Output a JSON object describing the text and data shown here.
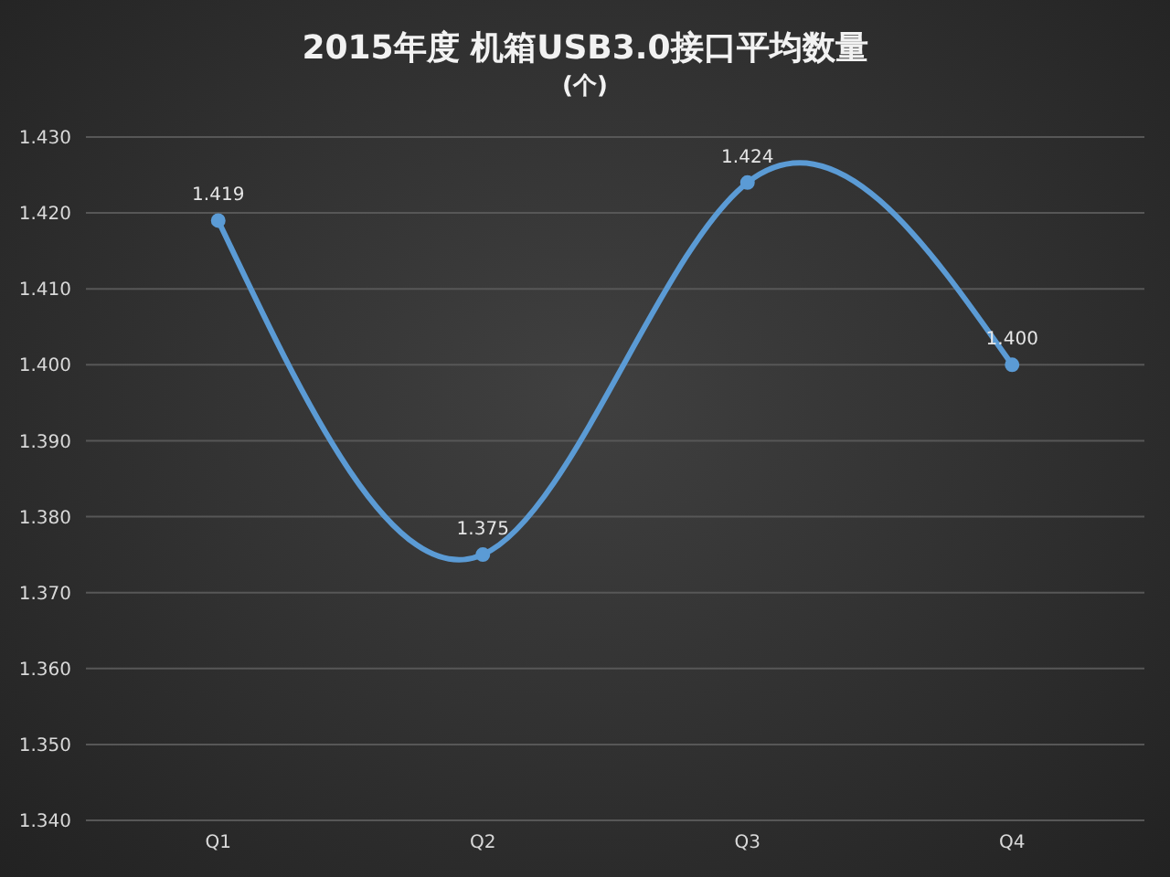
{
  "chart_data": {
    "type": "line",
    "title": "2015年度 机箱USB3.0接口平均数量",
    "subtitle": "(个)",
    "categories": [
      "Q1",
      "Q2",
      "Q3",
      "Q4"
    ],
    "values": [
      1.419,
      1.375,
      1.424,
      1.4
    ],
    "value_labels": [
      "1.419",
      "1.375",
      "1.424",
      "1.400"
    ],
    "color": "#5b9bd5",
    "ylim": [
      1.34,
      1.43
    ],
    "yticks": [
      {
        "value": 1.34,
        "label": "1.340"
      },
      {
        "value": 1.35,
        "label": "1.350"
      },
      {
        "value": 1.36,
        "label": "1.360"
      },
      {
        "value": 1.37,
        "label": "1.370"
      },
      {
        "value": 1.38,
        "label": "1.380"
      },
      {
        "value": 1.39,
        "label": "1.390"
      },
      {
        "value": 1.4,
        "label": "1.400"
      },
      {
        "value": 1.41,
        "label": "1.410"
      },
      {
        "value": 1.42,
        "label": "1.420"
      },
      {
        "value": 1.43,
        "label": "1.430"
      }
    ],
    "grid": "y",
    "marker": "circle",
    "line_style": "solid"
  }
}
